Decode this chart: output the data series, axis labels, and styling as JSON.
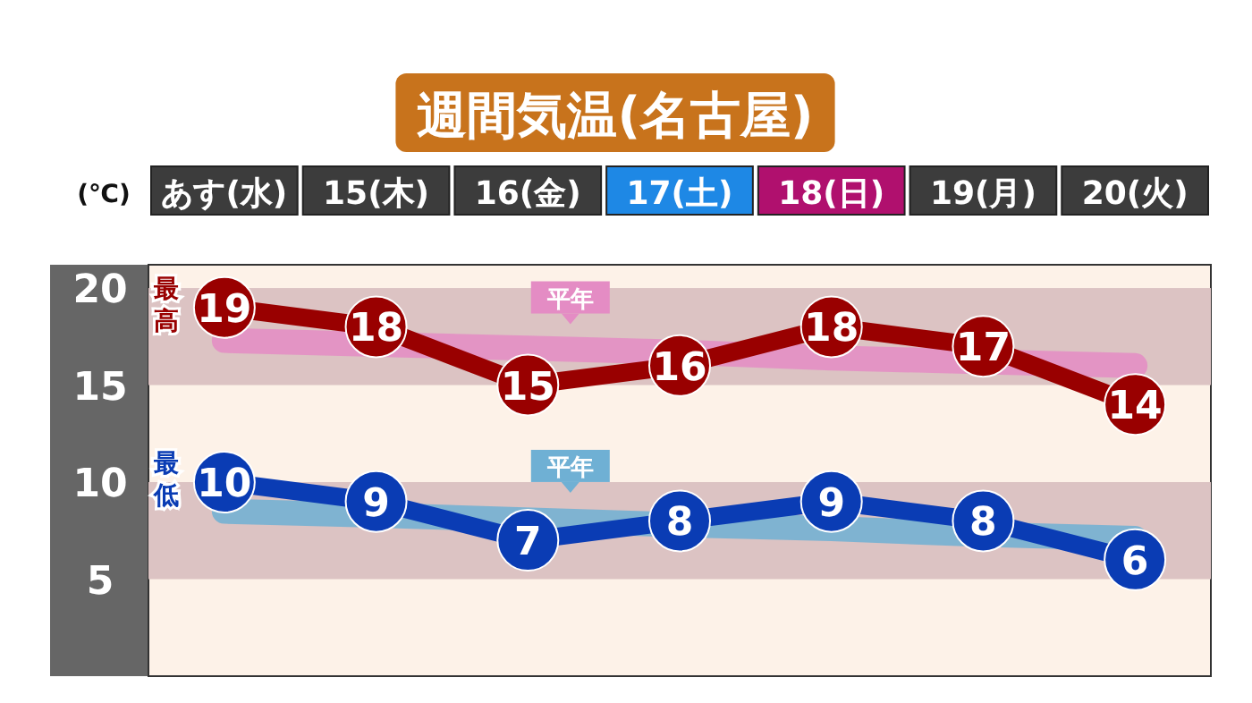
{
  "chart_data": {
    "type": "line",
    "title": "週間気温(名古屋)",
    "ylabel": "(℃)",
    "categories": [
      "あす(水)",
      "15(木)",
      "16(金)",
      "17(土)",
      "18(日)",
      "19(月)",
      "20(火)"
    ],
    "series": [
      {
        "name": "平年",
        "color": "#e48cc4",
        "values": [
          17.3,
          17.1,
          16.9,
          16.7,
          16.4,
          16.2,
          16.0
        ],
        "marker": "none"
      },
      {
        "name": "平年",
        "color": "#6fb0d4",
        "values": [
          8.5,
          8.3,
          null,
          7.8,
          7.6,
          7.3,
          7.1
        ],
        "marker": "none"
      },
      {
        "name": "最高",
        "color": "#990000",
        "values": [
          19,
          18,
          15,
          16,
          18,
          17,
          14
        ],
        "value_labels": [
          "19",
          "18",
          "15",
          "16",
          "18",
          "17",
          "14"
        ],
        "marker": "circle"
      },
      {
        "name": "最低",
        "color": "#0a3cb4",
        "values": [
          10,
          9,
          7,
          8,
          9,
          8,
          6
        ],
        "value_labels": [
          "10",
          "9",
          "7",
          "8",
          "9",
          "8",
          "6"
        ],
        "marker": "circle"
      }
    ],
    "ylim": [
      0,
      21.2
    ],
    "yticks": [
      5,
      10,
      15,
      20
    ],
    "bands": [
      {
        "axis": "y",
        "from": 15,
        "to": 20,
        "color": "#dcc3c3"
      },
      {
        "axis": "y",
        "from": 5,
        "to": 10,
        "color": "#dcc3c3"
      }
    ],
    "legend": false,
    "grid": false
  }
}
